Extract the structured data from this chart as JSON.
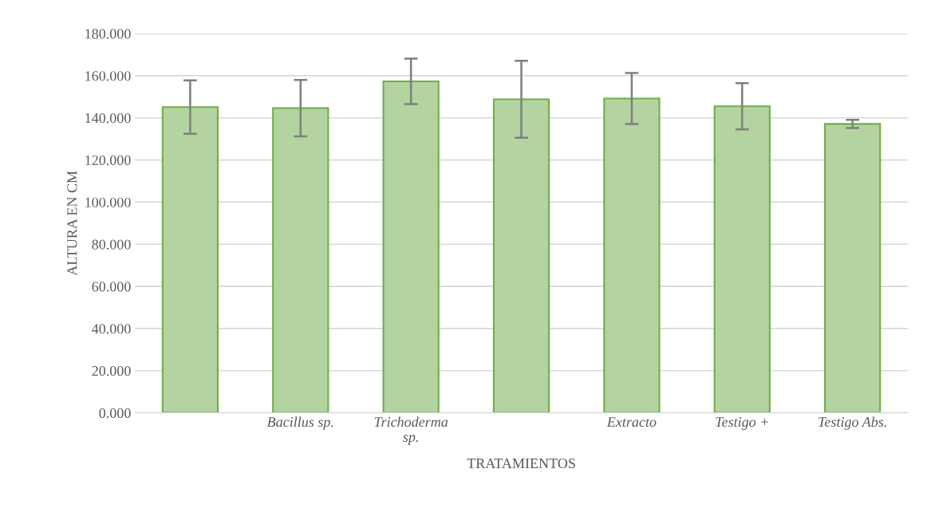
{
  "chart_data": {
    "type": "bar",
    "xlabel": "TRATAMIENTOS",
    "ylabel": "ALTURA EN CM",
    "categories": [
      null,
      "Bacillus sp.",
      "Trichoderma\nsp.",
      null,
      "Extracto",
      "Testigo +",
      "Testigo Abs."
    ],
    "values": [
      145.1,
      144.6,
      157.3,
      148.8,
      149.2,
      145.5,
      137.1
    ],
    "errors": [
      12.7,
      13.4,
      10.8,
      18.3,
      12.1,
      11,
      1.9
    ],
    "color": "#b3d4a0",
    "ylim": [
      0,
      180
    ],
    "yticks": [
      {
        "value": 0,
        "label": "0.000"
      },
      {
        "value": 20,
        "label": "20.000"
      },
      {
        "value": 40,
        "label": "40.000"
      },
      {
        "value": 60,
        "label": "60.000"
      },
      {
        "value": 80,
        "label": "80.000"
      },
      {
        "value": 100,
        "label": "100.000"
      },
      {
        "value": 120,
        "label": "120.000"
      },
      {
        "value": 140,
        "label": "140.000"
      },
      {
        "value": 160,
        "label": "160.000"
      },
      {
        "value": 180,
        "label": "180.000"
      }
    ],
    "grid": "y"
  }
}
